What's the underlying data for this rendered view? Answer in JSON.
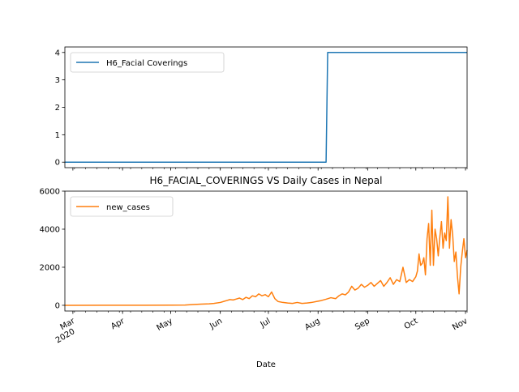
{
  "chart_data": [
    {
      "type": "line",
      "title": "",
      "xlabel": "",
      "ylabel": "",
      "ylim": [
        -0.2,
        4.2
      ],
      "yticks": [
        0,
        1,
        2,
        3,
        4
      ],
      "x_range": [
        "2020-02-25",
        "2020-11-02"
      ],
      "legend": {
        "placement": "top-left",
        "entries": [
          "H6_Facial Coverings"
        ]
      },
      "grid": false,
      "series": [
        {
          "name": "H6_Facial Coverings",
          "color": "#1f77b4",
          "step": true,
          "points": [
            [
              "2020-02-25",
              0
            ],
            [
              "2020-08-06",
              0
            ],
            [
              "2020-08-07",
              4
            ],
            [
              "2020-11-02",
              4
            ]
          ]
        }
      ]
    },
    {
      "type": "line",
      "title": "H6_FACIAL_COVERINGS VS Daily Cases in Nepal",
      "xlabel": "Date",
      "ylabel": "",
      "ylim": [
        -300,
        6000
      ],
      "yticks": [
        0,
        2000,
        4000,
        6000
      ],
      "x_range": [
        "2020-02-25",
        "2020-11-02"
      ],
      "xtick_labels": [
        {
          "date": "2020-03-01",
          "label": "Mar",
          "sub": "2020"
        },
        {
          "date": "2020-04-01",
          "label": "Apr"
        },
        {
          "date": "2020-05-01",
          "label": "May"
        },
        {
          "date": "2020-06-01",
          "label": "Jun"
        },
        {
          "date": "2020-07-01",
          "label": "Jul"
        },
        {
          "date": "2020-08-01",
          "label": "Aug"
        },
        {
          "date": "2020-09-01",
          "label": "Sep"
        },
        {
          "date": "2020-10-01",
          "label": "Oct"
        },
        {
          "date": "2020-11-01",
          "label": "Nov"
        }
      ],
      "legend": {
        "placement": "top-left",
        "entries": [
          "new_cases"
        ]
      },
      "grid": false,
      "series": [
        {
          "name": "new_cases",
          "color": "#ff7f0e",
          "points": [
            [
              "2020-02-25",
              0
            ],
            [
              "2020-04-01",
              2
            ],
            [
              "2020-04-15",
              5
            ],
            [
              "2020-05-01",
              10
            ],
            [
              "2020-05-10",
              15
            ],
            [
              "2020-05-15",
              40
            ],
            [
              "2020-05-20",
              60
            ],
            [
              "2020-05-25",
              80
            ],
            [
              "2020-05-28",
              100
            ],
            [
              "2020-06-01",
              150
            ],
            [
              "2020-06-03",
              200
            ],
            [
              "2020-06-05",
              250
            ],
            [
              "2020-06-07",
              300
            ],
            [
              "2020-06-09",
              280
            ],
            [
              "2020-06-11",
              330
            ],
            [
              "2020-06-13",
              380
            ],
            [
              "2020-06-15",
              300
            ],
            [
              "2020-06-17",
              420
            ],
            [
              "2020-06-19",
              350
            ],
            [
              "2020-06-21",
              500
            ],
            [
              "2020-06-23",
              450
            ],
            [
              "2020-06-25",
              600
            ],
            [
              "2020-06-27",
              500
            ],
            [
              "2020-06-29",
              560
            ],
            [
              "2020-07-01",
              450
            ],
            [
              "2020-07-03",
              700
            ],
            [
              "2020-07-05",
              350
            ],
            [
              "2020-07-07",
              200
            ],
            [
              "2020-07-10",
              150
            ],
            [
              "2020-07-13",
              120
            ],
            [
              "2020-07-16",
              100
            ],
            [
              "2020-07-19",
              150
            ],
            [
              "2020-07-22",
              100
            ],
            [
              "2020-07-25",
              120
            ],
            [
              "2020-07-28",
              150
            ],
            [
              "2020-07-31",
              200
            ],
            [
              "2020-08-03",
              250
            ],
            [
              "2020-08-06",
              320
            ],
            [
              "2020-08-09",
              400
            ],
            [
              "2020-08-12",
              350
            ],
            [
              "2020-08-14",
              500
            ],
            [
              "2020-08-16",
              600
            ],
            [
              "2020-08-18",
              550
            ],
            [
              "2020-08-20",
              700
            ],
            [
              "2020-08-22",
              1000
            ],
            [
              "2020-08-24",
              800
            ],
            [
              "2020-08-26",
              900
            ],
            [
              "2020-08-28",
              1100
            ],
            [
              "2020-08-30",
              950
            ],
            [
              "2020-09-01",
              1050
            ],
            [
              "2020-09-03",
              1200
            ],
            [
              "2020-09-05",
              1000
            ],
            [
              "2020-09-07",
              1150
            ],
            [
              "2020-09-09",
              1300
            ],
            [
              "2020-09-11",
              1000
            ],
            [
              "2020-09-13",
              1200
            ],
            [
              "2020-09-15",
              1450
            ],
            [
              "2020-09-17",
              1100
            ],
            [
              "2020-09-19",
              1350
            ],
            [
              "2020-09-21",
              1250
            ],
            [
              "2020-09-23",
              2000
            ],
            [
              "2020-09-25",
              1200
            ],
            [
              "2020-09-27",
              1350
            ],
            [
              "2020-09-29",
              1250
            ],
            [
              "2020-10-01",
              1500
            ],
            [
              "2020-10-02",
              1800
            ],
            [
              "2020-10-03",
              2700
            ],
            [
              "2020-10-04",
              2100
            ],
            [
              "2020-10-05",
              2200
            ],
            [
              "2020-10-06",
              2500
            ],
            [
              "2020-10-07",
              1600
            ],
            [
              "2020-10-08",
              3500
            ],
            [
              "2020-10-09",
              4300
            ],
            [
              "2020-10-10",
              2100
            ],
            [
              "2020-10-11",
              5000
            ],
            [
              "2020-10-12",
              2100
            ],
            [
              "2020-10-13",
              4000
            ],
            [
              "2020-10-14",
              3500
            ],
            [
              "2020-10-15",
              2600
            ],
            [
              "2020-10-16",
              3600
            ],
            [
              "2020-10-17",
              4400
            ],
            [
              "2020-10-18",
              3000
            ],
            [
              "2020-10-19",
              3800
            ],
            [
              "2020-10-20",
              3400
            ],
            [
              "2020-10-21",
              5700
            ],
            [
              "2020-10-22",
              3000
            ],
            [
              "2020-10-23",
              4500
            ],
            [
              "2020-10-24",
              3700
            ],
            [
              "2020-10-25",
              2300
            ],
            [
              "2020-10-26",
              2800
            ],
            [
              "2020-10-27",
              1500
            ],
            [
              "2020-10-28",
              600
            ],
            [
              "2020-10-29",
              2000
            ],
            [
              "2020-10-30",
              2800
            ],
            [
              "2020-10-31",
              3500
            ],
            [
              "2020-11-01",
              2500
            ],
            [
              "2020-11-02",
              2900
            ]
          ]
        }
      ]
    }
  ]
}
